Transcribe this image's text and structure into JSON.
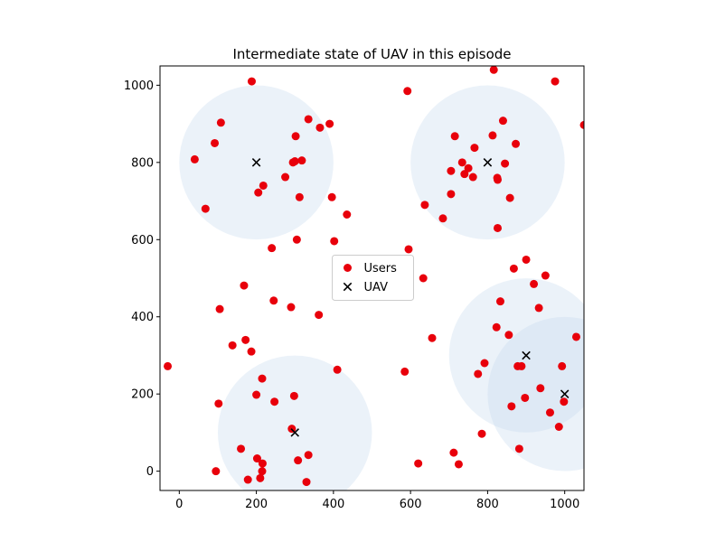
{
  "chart_data": {
    "type": "scatter",
    "title": "Intermediate state of UAV in this episode",
    "xlabel": "",
    "ylabel": "",
    "xlim": [
      -50,
      1050
    ],
    "ylim": [
      -50,
      1050
    ],
    "x_ticks": [
      0,
      200,
      400,
      600,
      800,
      1000
    ],
    "y_ticks": [
      0,
      200,
      400,
      600,
      800,
      1000
    ],
    "legend": {
      "placement": "center",
      "entries": [
        "Users",
        "UAV"
      ]
    },
    "colors": {
      "users": "#e8000b",
      "uav": "#000000",
      "coverage": "#c6d9ee"
    },
    "coverage_radius": 200,
    "series": [
      {
        "name": "Users",
        "marker": "circle",
        "points": [
          [
            -30,
            272
          ],
          [
            40,
            808
          ],
          [
            68,
            680
          ],
          [
            92,
            850
          ],
          [
            95,
            0
          ],
          [
            102,
            175
          ],
          [
            105,
            420
          ],
          [
            108,
            903
          ],
          [
            138,
            326
          ],
          [
            160,
            58
          ],
          [
            168,
            481
          ],
          [
            172,
            340
          ],
          [
            178,
            -22
          ],
          [
            187,
            310
          ],
          [
            188,
            1010
          ],
          [
            200,
            198
          ],
          [
            202,
            33
          ],
          [
            205,
            722
          ],
          [
            210,
            -18
          ],
          [
            215,
            240
          ],
          [
            215,
            0
          ],
          [
            216,
            20
          ],
          [
            218,
            740
          ],
          [
            240,
            578
          ],
          [
            245,
            442
          ],
          [
            247,
            180
          ],
          [
            275,
            762
          ],
          [
            290,
            425
          ],
          [
            292,
            110
          ],
          [
            295,
            800
          ],
          [
            298,
            195
          ],
          [
            300,
            803
          ],
          [
            302,
            868
          ],
          [
            305,
            600
          ],
          [
            308,
            28
          ],
          [
            312,
            710
          ],
          [
            318,
            805
          ],
          [
            330,
            -28
          ],
          [
            335,
            912
          ],
          [
            335,
            42
          ],
          [
            362,
            405
          ],
          [
            365,
            890
          ],
          [
            390,
            900
          ],
          [
            396,
            710
          ],
          [
            402,
            596
          ],
          [
            410,
            263
          ],
          [
            435,
            665
          ],
          [
            585,
            258
          ],
          [
            592,
            985
          ],
          [
            595,
            575
          ],
          [
            620,
            20
          ],
          [
            633,
            500
          ],
          [
            637,
            690
          ],
          [
            656,
            345
          ],
          [
            684,
            655
          ],
          [
            705,
            718
          ],
          [
            705,
            778
          ],
          [
            712,
            48
          ],
          [
            715,
            868
          ],
          [
            725,
            18
          ],
          [
            734,
            800
          ],
          [
            740,
            770
          ],
          [
            750,
            785
          ],
          [
            762,
            762
          ],
          [
            766,
            838
          ],
          [
            775,
            252
          ],
          [
            785,
            97
          ],
          [
            792,
            280
          ],
          [
            813,
            870
          ],
          [
            816,
            1040
          ],
          [
            823,
            373
          ],
          [
            825,
            760
          ],
          [
            826,
            755
          ],
          [
            826,
            630
          ],
          [
            833,
            440
          ],
          [
            840,
            908
          ],
          [
            845,
            797
          ],
          [
            855,
            353
          ],
          [
            858,
            708
          ],
          [
            862,
            168
          ],
          [
            868,
            525
          ],
          [
            873,
            848
          ],
          [
            878,
            272
          ],
          [
            882,
            58
          ],
          [
            888,
            272
          ],
          [
            897,
            190
          ],
          [
            900,
            548
          ],
          [
            920,
            485
          ],
          [
            933,
            423
          ],
          [
            937,
            215
          ],
          [
            950,
            507
          ],
          [
            962,
            152
          ],
          [
            975,
            1010
          ],
          [
            985,
            115
          ],
          [
            993,
            272
          ],
          [
            998,
            180
          ],
          [
            1030,
            348
          ],
          [
            1050,
            897
          ]
        ]
      },
      {
        "name": "UAV",
        "marker": "x",
        "points": [
          [
            200,
            800
          ],
          [
            800,
            800
          ],
          [
            900,
            300
          ],
          [
            1000,
            200
          ],
          [
            300,
            100
          ]
        ]
      }
    ]
  }
}
